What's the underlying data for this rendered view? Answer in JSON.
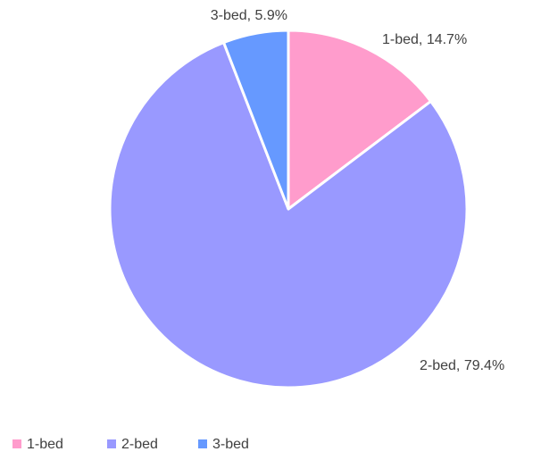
{
  "chart_data": {
    "type": "pie",
    "categories": [
      "1-bed",
      "2-bed",
      "3-bed"
    ],
    "values": [
      14.7,
      79.4,
      5.9
    ],
    "value_labels": [
      "1-bed, 14.7%",
      "2-bed, 79.4%",
      "3-bed, 5.9%"
    ],
    "colors": [
      "#ff9ccc",
      "#9999ff",
      "#6699ff"
    ],
    "legend": "bottom"
  }
}
